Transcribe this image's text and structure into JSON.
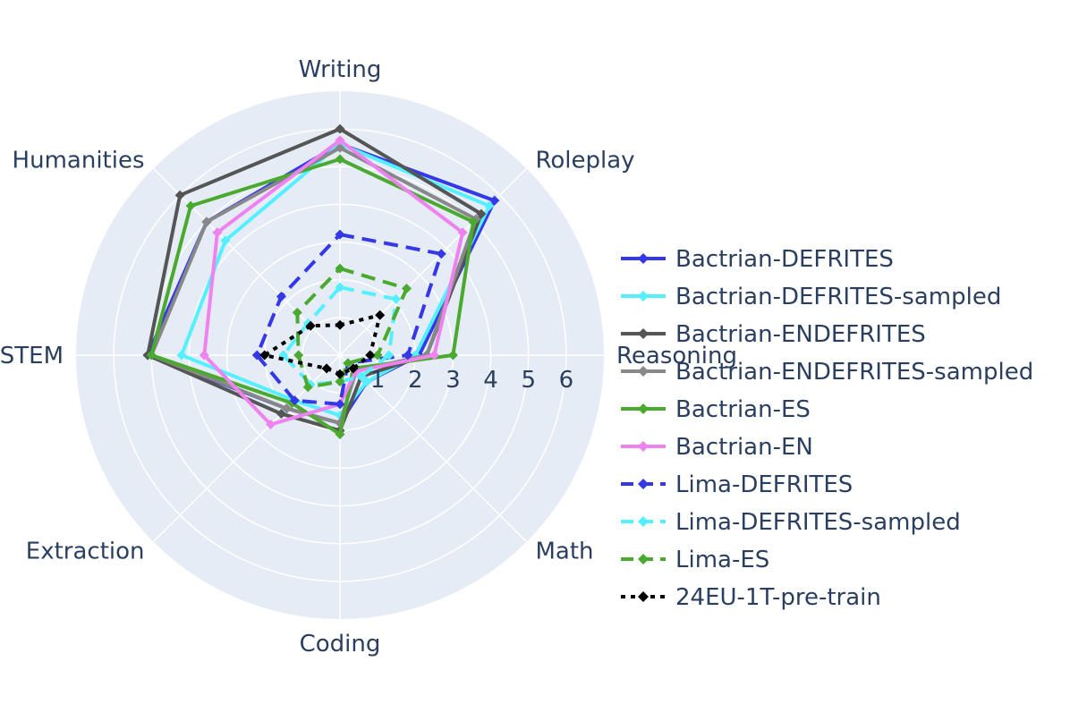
{
  "chart_data": {
    "type": "radar",
    "categories": [
      "Writing",
      "Roleplay",
      "Reasoning",
      "Math",
      "Coding",
      "Extraction",
      "STEM",
      "Humanities"
    ],
    "radial_range": [
      0,
      7
    ],
    "radial_ticks": [
      1,
      2,
      3,
      4,
      5,
      6
    ],
    "colors": {
      "plot_bg": "#e5ecf6",
      "grid": "#ffffff",
      "text": "#2a3f5f"
    },
    "series": [
      {
        "name": "Bactrian-DEFRITES",
        "color": "#3538e6",
        "dash": "solid",
        "values": [
          5.6,
          5.8,
          2.1,
          1.0,
          1.8,
          2.0,
          5.1,
          5.0
        ]
      },
      {
        "name": "Bactrian-DEFRITES-sampled",
        "color": "#55f0ff",
        "dash": "solid",
        "values": [
          5.6,
          5.6,
          2.0,
          1.0,
          1.6,
          1.7,
          4.2,
          4.3
        ]
      },
      {
        "name": "Bactrian-ENDEFRITES",
        "color": "#555555",
        "dash": "solid",
        "values": [
          6.0,
          5.3,
          2.3,
          0.8,
          2.0,
          2.2,
          5.1,
          6.0
        ]
      },
      {
        "name": "Bactrian-ENDEFRITES-sampled",
        "color": "#888888",
        "dash": "solid",
        "values": [
          5.5,
          5.1,
          2.3,
          0.6,
          1.8,
          2.0,
          5.0,
          5.0
        ]
      },
      {
        "name": "Bactrian-ES",
        "color": "#4aaa2f",
        "dash": "solid",
        "values": [
          5.2,
          5.0,
          3.0,
          0.5,
          2.1,
          1.8,
          5.0,
          5.6
        ]
      },
      {
        "name": "Bactrian-EN",
        "color": "#ee82ee",
        "dash": "solid",
        "values": [
          5.7,
          4.6,
          2.5,
          0.6,
          1.3,
          2.6,
          3.6,
          4.6
        ]
      },
      {
        "name": "Lima-DEFRITES",
        "color": "#3538e6",
        "dash": "dash",
        "values": [
          3.2,
          3.8,
          1.8,
          0.3,
          1.3,
          1.7,
          2.2,
          2.2
        ]
      },
      {
        "name": "Lima-DEFRITES-sampled",
        "color": "#55f0ff",
        "dash": "dash",
        "values": [
          1.8,
          2.1,
          1.3,
          0.8,
          0.7,
          1.1,
          1.5,
          1.2
        ]
      },
      {
        "name": "Lima-ES",
        "color": "#4aaa2f",
        "dash": "dash",
        "values": [
          2.3,
          2.5,
          1.0,
          0.3,
          0.7,
          1.2,
          1.1,
          1.6
        ]
      },
      {
        "name": "24EU-1T-pre-train",
        "color": "#000000",
        "dash": "dot",
        "values": [
          0.8,
          1.5,
          0.8,
          0.5,
          0.5,
          0.5,
          2.0,
          1.1
        ]
      }
    ]
  }
}
